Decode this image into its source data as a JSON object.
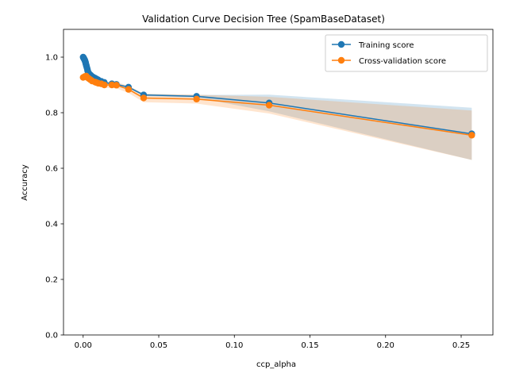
{
  "chart_data": {
    "type": "line",
    "title": "Validation Curve Decision Tree (SpamBaseDataset)",
    "xlabel": "ccp_alpha",
    "ylabel": "Accuracy",
    "xlim": [
      -0.013,
      0.271
    ],
    "ylim": [
      0.0,
      1.1
    ],
    "xticks": [
      0.0,
      0.05,
      0.1,
      0.15,
      0.2,
      0.25
    ],
    "xtick_labels": [
      "0.00",
      "0.05",
      "0.10",
      "0.15",
      "0.20",
      "0.25"
    ],
    "yticks": [
      0.0,
      0.2,
      0.4,
      0.6,
      0.8,
      1.0
    ],
    "ytick_labels": [
      "0.0",
      "0.2",
      "0.4",
      "0.6",
      "0.8",
      "1.0"
    ],
    "grid": false,
    "legend_position": "top-right",
    "series": [
      {
        "name": "Training score",
        "color": "#1f77b4",
        "x": [
          0.0,
          0.0002,
          0.0004,
          0.0006,
          0.0008,
          0.001,
          0.0012,
          0.0014,
          0.0016,
          0.0018,
          0.002,
          0.0022,
          0.0025,
          0.0028,
          0.003,
          0.0035,
          0.004,
          0.005,
          0.006,
          0.007,
          0.008,
          0.009,
          0.01,
          0.012,
          0.014,
          0.019,
          0.022,
          0.03,
          0.04,
          0.075,
          0.123,
          0.257
        ],
        "y": [
          1.0,
          0.998,
          0.996,
          0.994,
          0.992,
          0.99,
          0.987,
          0.984,
          0.98,
          0.976,
          0.972,
          0.968,
          0.962,
          0.956,
          0.95,
          0.944,
          0.94,
          0.935,
          0.93,
          0.927,
          0.924,
          0.921,
          0.918,
          0.913,
          0.909,
          0.904,
          0.902,
          0.892,
          0.864,
          0.859,
          0.835,
          0.724
        ],
        "upper": [
          1.0,
          0.999,
          0.998,
          0.996,
          0.994,
          0.992,
          0.99,
          0.987,
          0.983,
          0.979,
          0.975,
          0.971,
          0.965,
          0.959,
          0.953,
          0.947,
          0.943,
          0.938,
          0.933,
          0.93,
          0.927,
          0.924,
          0.921,
          0.916,
          0.912,
          0.907,
          0.905,
          0.896,
          0.868,
          0.864,
          0.865,
          0.818
        ],
        "lower": [
          1.0,
          0.997,
          0.994,
          0.992,
          0.99,
          0.988,
          0.984,
          0.981,
          0.977,
          0.973,
          0.969,
          0.965,
          0.959,
          0.953,
          0.947,
          0.941,
          0.937,
          0.932,
          0.927,
          0.924,
          0.921,
          0.918,
          0.915,
          0.91,
          0.906,
          0.901,
          0.899,
          0.888,
          0.86,
          0.854,
          0.805,
          0.63
        ]
      },
      {
        "name": "Cross-validation score",
        "color": "#ff7f0e",
        "x": [
          0.0,
          0.001,
          0.002,
          0.003,
          0.004,
          0.005,
          0.006,
          0.008,
          0.009,
          0.01,
          0.012,
          0.014,
          0.019,
          0.022,
          0.03,
          0.04,
          0.075,
          0.123,
          0.257
        ],
        "y": [
          0.927,
          0.93,
          0.932,
          0.926,
          0.922,
          0.918,
          0.914,
          0.91,
          0.908,
          0.906,
          0.904,
          0.9,
          0.9,
          0.899,
          0.884,
          0.853,
          0.849,
          0.827,
          0.719
        ],
        "upper": [
          0.937,
          0.94,
          0.942,
          0.936,
          0.932,
          0.928,
          0.924,
          0.92,
          0.918,
          0.916,
          0.914,
          0.911,
          0.911,
          0.91,
          0.897,
          0.868,
          0.865,
          0.857,
          0.808
        ],
        "lower": [
          0.917,
          0.92,
          0.922,
          0.916,
          0.912,
          0.908,
          0.904,
          0.9,
          0.898,
          0.896,
          0.894,
          0.889,
          0.889,
          0.888,
          0.871,
          0.838,
          0.833,
          0.797,
          0.63
        ]
      }
    ]
  }
}
